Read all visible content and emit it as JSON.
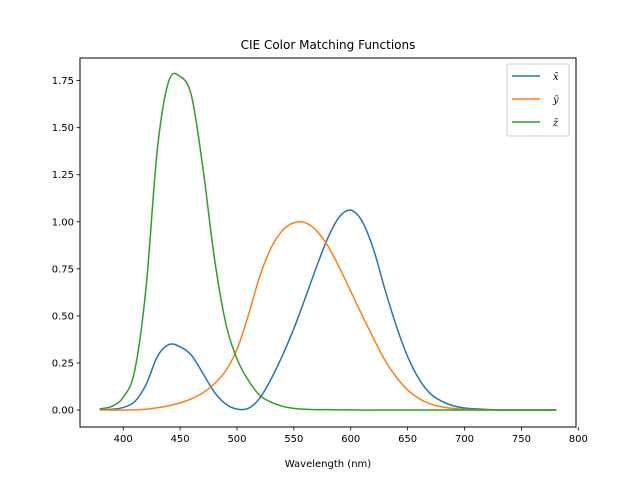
{
  "chart_data": {
    "type": "line",
    "title": "CIE Color Matching Functions",
    "xlabel": "Wavelength (nm)",
    "ylabel": "",
    "xlim": [
      362,
      798
    ],
    "ylim": [
      -0.09,
      1.87
    ],
    "xticks": [
      400,
      450,
      500,
      550,
      600,
      650,
      700,
      750,
      800
    ],
    "yticks": [
      0.0,
      0.25,
      0.5,
      0.75,
      1.0,
      1.25,
      1.5,
      1.75
    ],
    "ytick_labels": [
      "0.00",
      "0.25",
      "0.50",
      "0.75",
      "1.00",
      "1.25",
      "1.50",
      "1.75"
    ],
    "grid": false,
    "legend_position": "top-right",
    "x": [
      380,
      390,
      400,
      410,
      420,
      430,
      440,
      450,
      460,
      470,
      480,
      490,
      500,
      510,
      520,
      530,
      540,
      550,
      560,
      570,
      580,
      590,
      600,
      610,
      620,
      630,
      640,
      650,
      660,
      670,
      680,
      690,
      700,
      710,
      720,
      730,
      740,
      750,
      760,
      770,
      780
    ],
    "series": [
      {
        "name": "x̄",
        "color": "#1f77b4",
        "values": [
          0.001,
          0.004,
          0.014,
          0.044,
          0.134,
          0.284,
          0.348,
          0.336,
          0.291,
          0.195,
          0.096,
          0.032,
          0.005,
          0.009,
          0.063,
          0.165,
          0.29,
          0.433,
          0.595,
          0.762,
          0.916,
          1.026,
          1.062,
          1.003,
          0.854,
          0.642,
          0.448,
          0.284,
          0.165,
          0.087,
          0.047,
          0.023,
          0.011,
          0.006,
          0.003,
          0.001,
          0.001,
          0.0,
          0.0,
          0.0,
          0.0
        ]
      },
      {
        "name": "ȳ",
        "color": "#ff7f0e",
        "values": [
          0.0,
          0.0,
          0.0,
          0.001,
          0.004,
          0.012,
          0.023,
          0.038,
          0.06,
          0.091,
          0.139,
          0.208,
          0.323,
          0.503,
          0.71,
          0.862,
          0.954,
          0.995,
          0.995,
          0.952,
          0.87,
          0.757,
          0.631,
          0.503,
          0.381,
          0.265,
          0.175,
          0.107,
          0.061,
          0.032,
          0.017,
          0.008,
          0.004,
          0.002,
          0.001,
          0.001,
          0.0,
          0.0,
          0.0,
          0.0,
          0.0
        ]
      },
      {
        "name": "z̄",
        "color": "#2ca02c",
        "values": [
          0.007,
          0.02,
          0.068,
          0.207,
          0.646,
          1.386,
          1.747,
          1.772,
          1.669,
          1.288,
          0.813,
          0.465,
          0.272,
          0.158,
          0.078,
          0.042,
          0.02,
          0.009,
          0.004,
          0.002,
          0.002,
          0.001,
          0.001,
          0.0,
          0.0,
          0.0,
          0.0,
          0.0,
          0.0,
          0.0,
          0.0,
          0.0,
          0.0,
          0.0,
          0.0,
          0.0,
          0.0,
          0.0,
          0.0,
          0.0,
          0.0
        ]
      }
    ]
  }
}
